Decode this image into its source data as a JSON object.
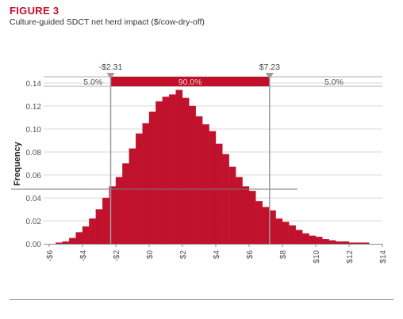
{
  "figure": {
    "label": "FIGURE 3",
    "title": "Culture-guided SDCT net herd impact ($/cow-dry-off)"
  },
  "colors": {
    "accent": "#c0102a",
    "bar_fill": "#c0122c",
    "marker": "#9a9a9a",
    "grid": "#d9d9d9"
  },
  "chart_data": {
    "type": "bar",
    "title": "Culture-guided SDCT net herd impact ($/cow-dry-off)",
    "xlabel": "",
    "ylabel": "Frequency",
    "xlim": [
      -6,
      14
    ],
    "ylim": [
      0,
      0.14
    ],
    "yticks": [
      0.0,
      0.02,
      0.04,
      0.06,
      0.08,
      0.1,
      0.12,
      0.14
    ],
    "ytick_labels": [
      "0.00",
      "0.02",
      "0.04",
      "0.06",
      "0.08",
      "0.10",
      "0.12",
      "0.14"
    ],
    "xticks": [
      -6,
      -4,
      -2,
      0,
      2,
      4,
      6,
      8,
      10,
      12,
      14
    ],
    "xtick_labels": [
      "-$6",
      "-$4",
      "-$2",
      "$0",
      "$2",
      "$4",
      "$6",
      "$8",
      "$10",
      "$12",
      "$14"
    ],
    "grid": true,
    "bin_width": 0.4,
    "bins": [
      {
        "x": -5.6,
        "y": 0.001
      },
      {
        "x": -5.2,
        "y": 0.002
      },
      {
        "x": -4.8,
        "y": 0.005
      },
      {
        "x": -4.4,
        "y": 0.01
      },
      {
        "x": -4.0,
        "y": 0.015
      },
      {
        "x": -3.6,
        "y": 0.022
      },
      {
        "x": -3.2,
        "y": 0.03
      },
      {
        "x": -2.8,
        "y": 0.04
      },
      {
        "x": -2.4,
        "y": 0.05
      },
      {
        "x": -2.0,
        "y": 0.058
      },
      {
        "x": -1.6,
        "y": 0.07
      },
      {
        "x": -1.2,
        "y": 0.083
      },
      {
        "x": -0.8,
        "y": 0.096
      },
      {
        "x": -0.4,
        "y": 0.105
      },
      {
        "x": 0.0,
        "y": 0.115
      },
      {
        "x": 0.4,
        "y": 0.124
      },
      {
        "x": 0.8,
        "y": 0.128
      },
      {
        "x": 1.2,
        "y": 0.13
      },
      {
        "x": 1.6,
        "y": 0.134
      },
      {
        "x": 2.0,
        "y": 0.127
      },
      {
        "x": 2.4,
        "y": 0.12
      },
      {
        "x": 2.8,
        "y": 0.111
      },
      {
        "x": 3.2,
        "y": 0.104
      },
      {
        "x": 3.6,
        "y": 0.098
      },
      {
        "x": 4.0,
        "y": 0.087
      },
      {
        "x": 4.4,
        "y": 0.078
      },
      {
        "x": 4.8,
        "y": 0.067
      },
      {
        "x": 5.2,
        "y": 0.058
      },
      {
        "x": 5.6,
        "y": 0.05
      },
      {
        "x": 6.0,
        "y": 0.046
      },
      {
        "x": 6.4,
        "y": 0.037
      },
      {
        "x": 6.8,
        "y": 0.032
      },
      {
        "x": 7.2,
        "y": 0.029
      },
      {
        "x": 7.6,
        "y": 0.022
      },
      {
        "x": 8.0,
        "y": 0.019
      },
      {
        "x": 8.4,
        "y": 0.016
      },
      {
        "x": 8.8,
        "y": 0.012
      },
      {
        "x": 9.2,
        "y": 0.009
      },
      {
        "x": 9.6,
        "y": 0.007
      },
      {
        "x": 10.0,
        "y": 0.006
      },
      {
        "x": 10.4,
        "y": 0.004
      },
      {
        "x": 10.8,
        "y": 0.003
      },
      {
        "x": 11.2,
        "y": 0.002
      },
      {
        "x": 11.6,
        "y": 0.002
      },
      {
        "x": 12.0,
        "y": 0.001
      },
      {
        "x": 12.4,
        "y": 0.001
      },
      {
        "x": 12.8,
        "y": 0.001
      }
    ],
    "interval": {
      "lower": -2.31,
      "upper": 7.23,
      "lower_label": "-$2.31",
      "upper_label": "$7.23",
      "left_tail_label": "5.0%",
      "center_label": "90.0%",
      "right_tail_label": "5.0%"
    }
  }
}
